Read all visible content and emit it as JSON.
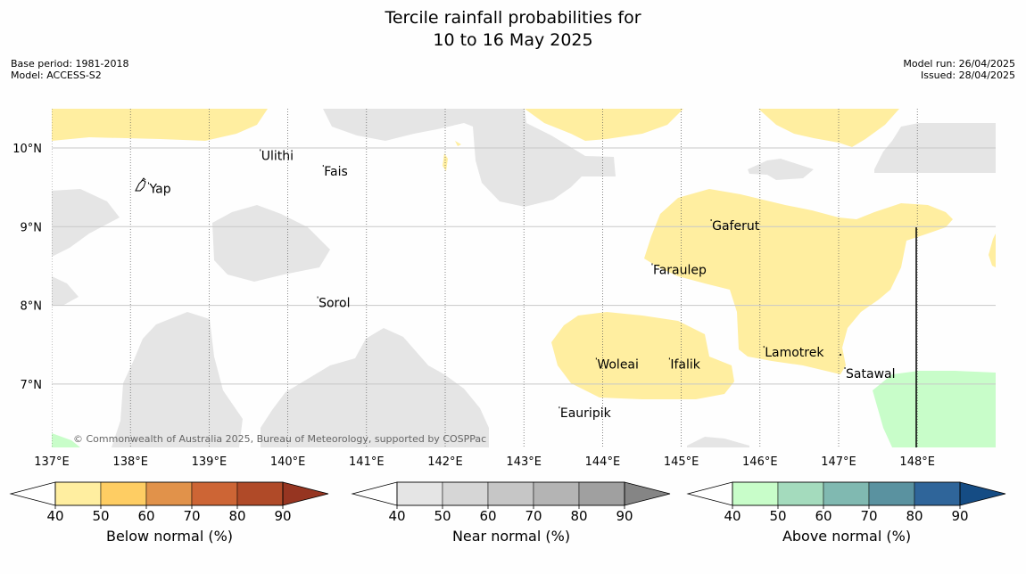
{
  "title_line1": "Tercile rainfall probabilities for",
  "title_line2": "10 to 16 May 2025",
  "meta_left": [
    "Base period: 1981-2018",
    "Model: ACCESS-S2"
  ],
  "meta_right": [
    "Model run: 26/04/2025",
    "Issued: 28/04/2025"
  ],
  "copyright": "© Commonwealth of Australia 2025, Bureau of Meteorology, supported by COSPPac",
  "lon_labels": [
    "137°E",
    "138°E",
    "139°E",
    "140°E",
    "141°E",
    "142°E",
    "143°E",
    "144°E",
    "145°E",
    "146°E",
    "147°E",
    "148°E"
  ],
  "lat_labels": [
    "10°N",
    "9°N",
    "8°N",
    "7°N"
  ],
  "places": [
    {
      "name": "Yap",
      "lon": 138.23,
      "lat": 9.53
    },
    {
      "name": "Ulithi",
      "lon": 139.65,
      "lat": 9.95
    },
    {
      "name": "Fais",
      "lon": 140.45,
      "lat": 9.75
    },
    {
      "name": "Sorol",
      "lon": 140.38,
      "lat": 8.08
    },
    {
      "name": "Gaferut",
      "lon": 145.38,
      "lat": 9.06
    },
    {
      "name": "Faraulep",
      "lon": 144.63,
      "lat": 8.5
    },
    {
      "name": "Woleai",
      "lon": 143.92,
      "lat": 7.3
    },
    {
      "name": "Ifalik",
      "lon": 144.85,
      "lat": 7.3
    },
    {
      "name": "Lamotrek",
      "lon": 146.05,
      "lat": 7.45
    },
    {
      "name": "Satawal",
      "lon": 147.08,
      "lat": 7.18
    },
    {
      "name": "Eauripik",
      "lon": 143.45,
      "lat": 6.68
    }
  ],
  "colorbars": [
    {
      "label": "Below normal (%)",
      "ticks": [
        "40",
        "50",
        "60",
        "70",
        "80",
        "90"
      ],
      "colors": [
        "#ffffff",
        "#ffeea0",
        "#fecd63",
        "#e1924a",
        "#cd6535",
        "#b04a28",
        "#963521"
      ]
    },
    {
      "label": "Near normal (%)",
      "ticks": [
        "40",
        "50",
        "60",
        "70",
        "80",
        "90"
      ],
      "colors": [
        "#ffffff",
        "#e5e5e5",
        "#d6d6d6",
        "#c6c6c6",
        "#b4b4b4",
        "#a0a0a0",
        "#858585"
      ]
    },
    {
      "label": "Above normal (%)",
      "ticks": [
        "40",
        "50",
        "60",
        "70",
        "80",
        "90"
      ],
      "colors": [
        "#ffffff",
        "#c8fdc9",
        "#a4dbbd",
        "#80b9b1",
        "#5a92a0",
        "#2f659a",
        "#154c84"
      ]
    }
  ],
  "colors": {
    "near": "#e5e5e5",
    "below": "#ffeea0",
    "above": "#c8fdc9",
    "grid": "#c8c8c8"
  }
}
